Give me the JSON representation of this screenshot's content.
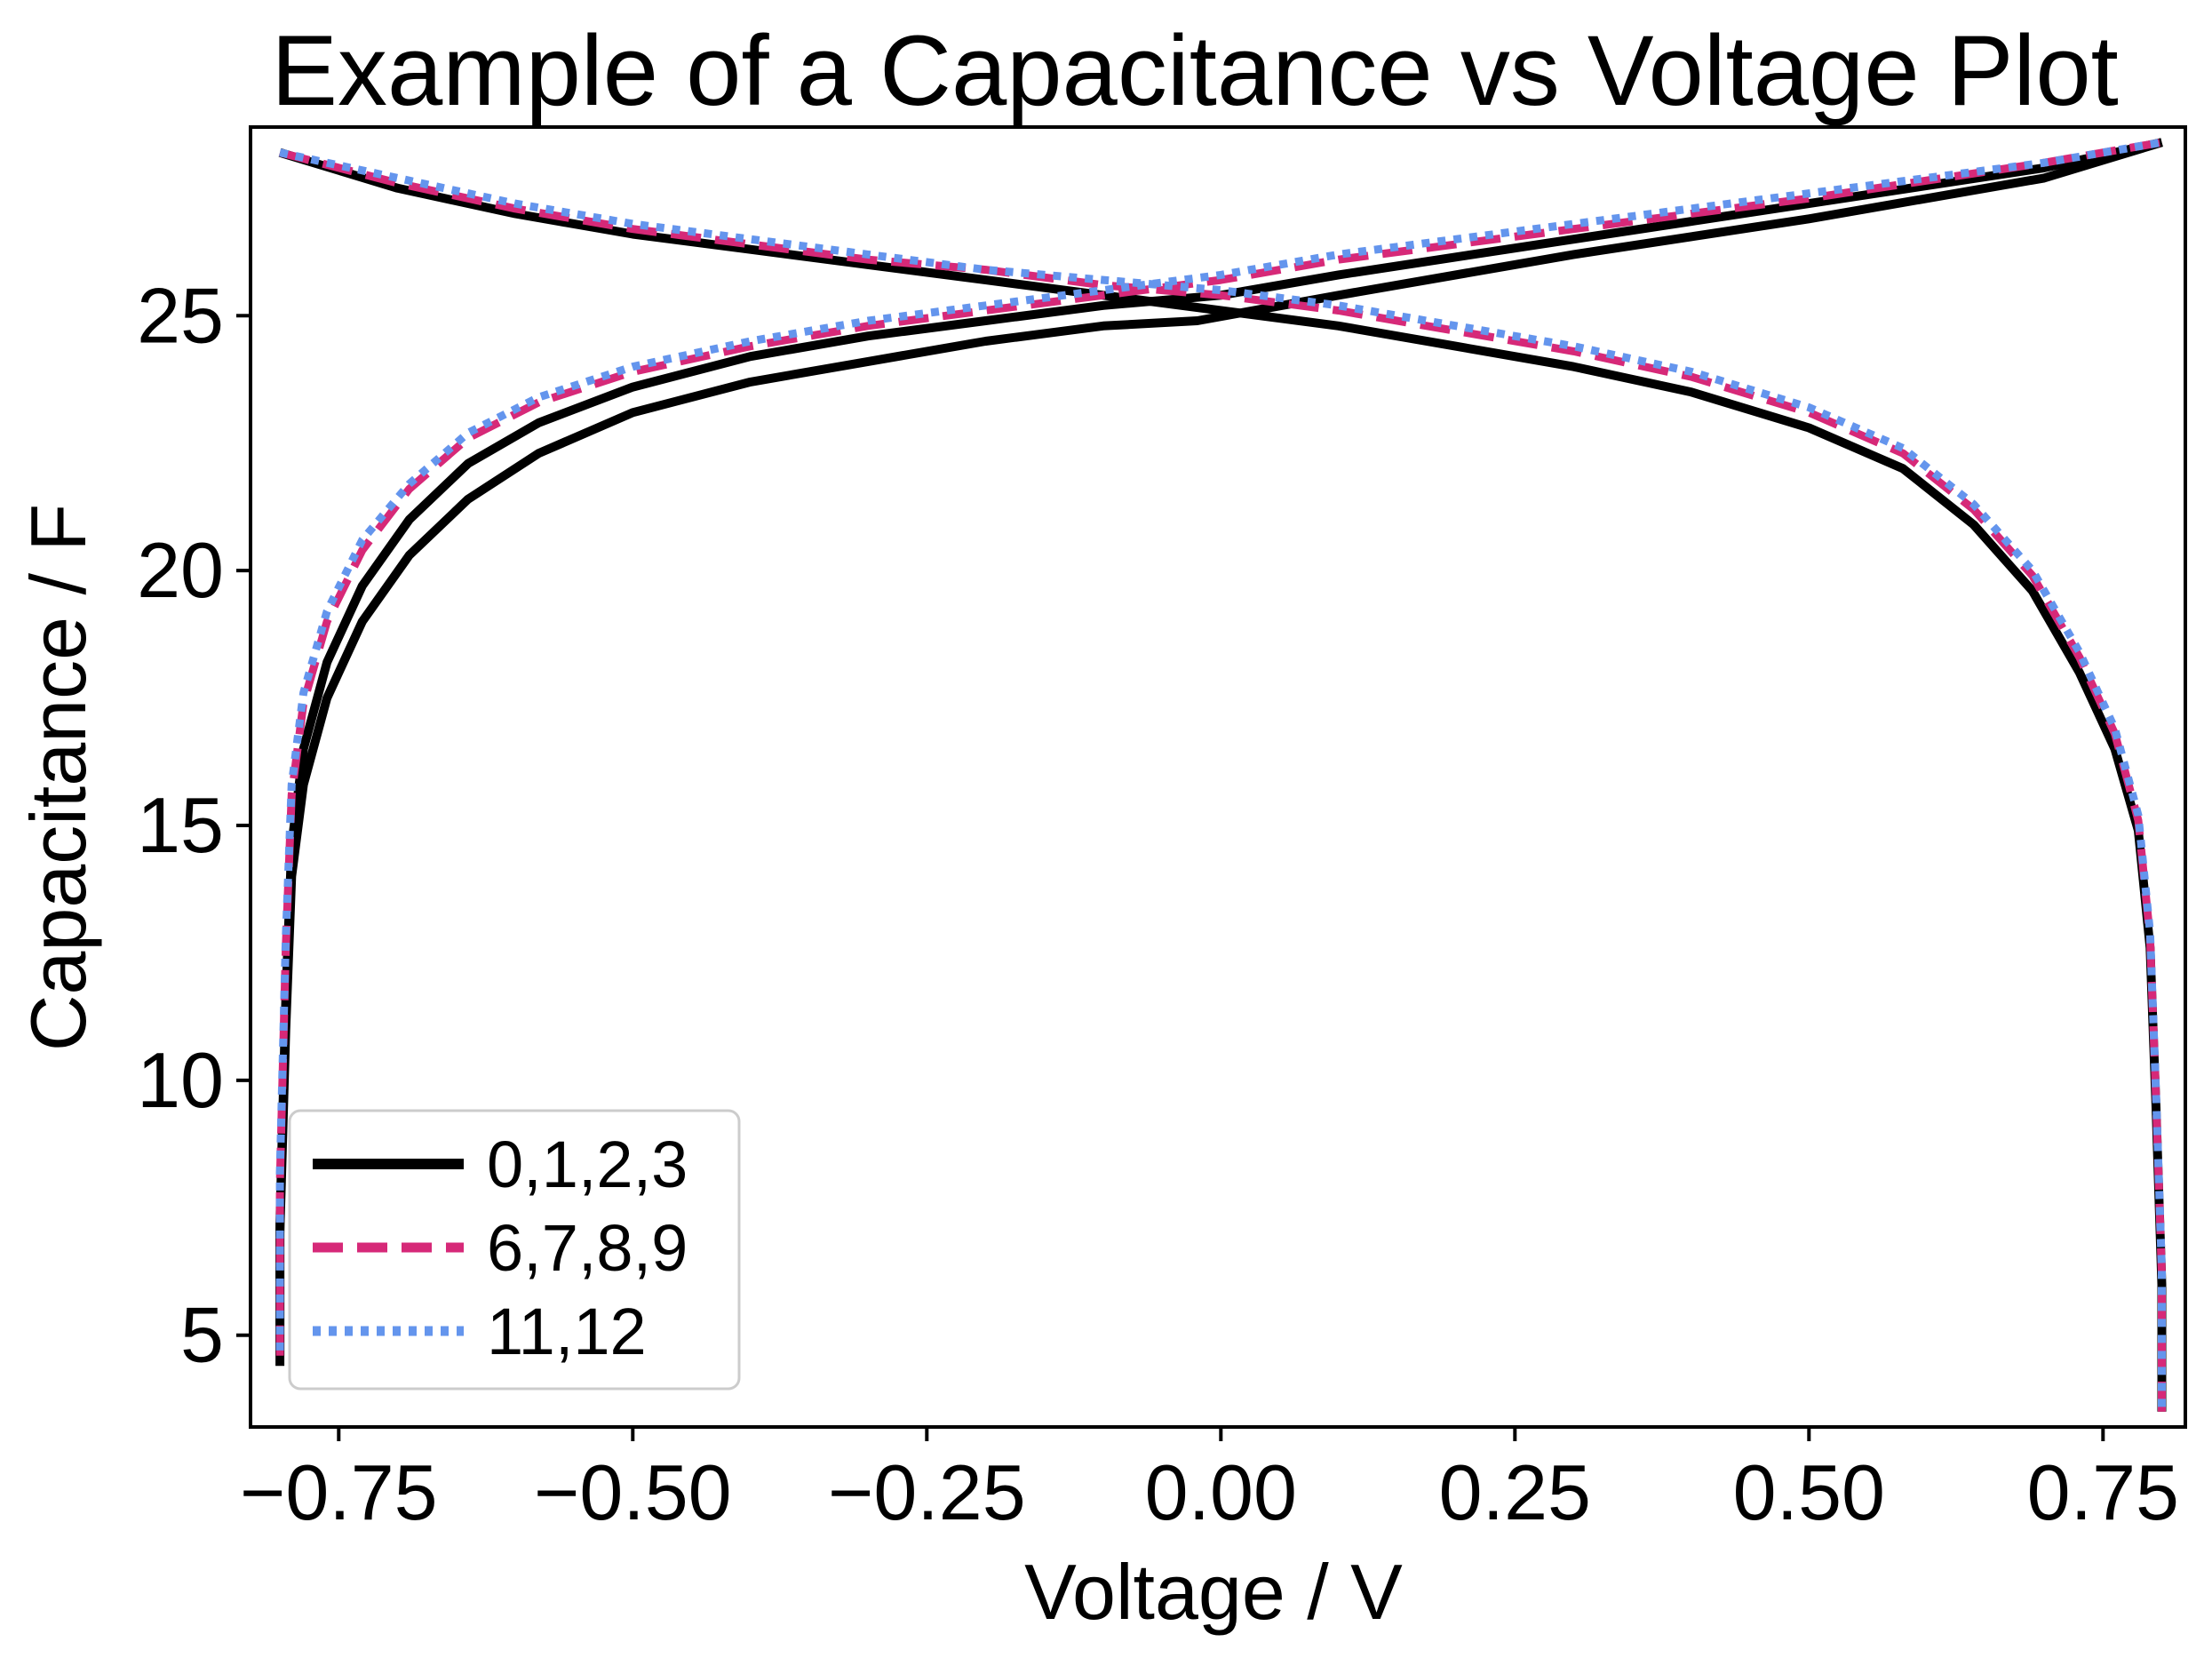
{
  "chart_data": {
    "type": "line",
    "title": "Example of a Capacitance vs Voltage Plot",
    "xlabel": "Voltage / V",
    "ylabel": "Capacitance / F",
    "xlim": [
      -0.825,
      0.82
    ],
    "ylim": [
      3.2,
      28.7
    ],
    "xticks": [
      -0.75,
      -0.5,
      -0.25,
      0.0,
      0.25,
      0.5,
      0.75
    ],
    "xtick_labels": [
      "−0.75",
      "−0.50",
      "−0.25",
      "0.00",
      "0.25",
      "0.50",
      "0.75"
    ],
    "yticks": [
      5,
      10,
      15,
      20,
      25
    ],
    "ytick_labels": [
      "5",
      "10",
      "15",
      "20",
      "25"
    ],
    "grid": false,
    "legend_position": "lower-left",
    "series": [
      {
        "name": "0,1,2,3",
        "color": "#000000",
        "style": "solid",
        "curves": [
          {
            "x": [
              -0.8,
              -0.8,
              -0.795,
              -0.79,
              -0.78,
              -0.76,
              -0.73,
              -0.69,
              -0.64,
              -0.58,
              -0.5,
              -0.4,
              -0.3,
              -0.2,
              -0.1,
              -0.02,
              0.1,
              0.3,
              0.5,
              0.7,
              0.8
            ],
            "y": [
              4.6,
              7.0,
              11.0,
              14.0,
              15.8,
              17.5,
              19.0,
              20.3,
              21.4,
              22.3,
              23.1,
              23.7,
              24.1,
              24.5,
              24.8,
              24.9,
              25.4,
              26.2,
              26.9,
              27.7,
              28.4
            ]
          },
          {
            "x": [
              -0.8,
              -0.8,
              -0.795,
              -0.79,
              -0.78,
              -0.76,
              -0.73,
              -0.69,
              -0.64,
              -0.58,
              -0.5,
              -0.4,
              -0.3,
              -0.2,
              -0.1,
              0.0,
              0.1,
              0.3,
              0.5,
              0.7,
              0.8
            ],
            "y": [
              4.4,
              7.2,
              11.6,
              14.6,
              16.5,
              18.2,
              19.7,
              21.0,
              22.1,
              22.9,
              23.6,
              24.2,
              24.6,
              24.9,
              25.2,
              25.4,
              25.8,
              26.5,
              27.2,
              27.9,
              28.4
            ]
          },
          {
            "x": [
              -0.8,
              -0.7,
              -0.6,
              -0.5,
              -0.4,
              -0.3,
              -0.2,
              -0.1,
              0.0,
              0.1,
              0.2,
              0.3,
              0.4,
              0.5,
              0.58,
              0.64,
              0.69,
              0.73,
              0.76,
              0.78,
              0.79,
              0.795,
              0.8,
              0.8
            ],
            "y": [
              28.2,
              27.5,
              27.0,
              26.6,
              26.3,
              26.0,
              25.7,
              25.4,
              25.1,
              24.8,
              24.4,
              24.0,
              23.5,
              22.8,
              22.0,
              20.9,
              19.6,
              18.0,
              16.5,
              14.9,
              12.6,
              9.5,
              6.0,
              3.5
            ]
          }
        ]
      },
      {
        "name": "6,7,8,9",
        "color": "#d62978",
        "style": "dashed",
        "curves": [
          {
            "x": [
              -0.8,
              -0.8,
              -0.795,
              -0.79,
              -0.78,
              -0.76,
              -0.73,
              -0.69,
              -0.64,
              -0.58,
              -0.5,
              -0.4,
              -0.3,
              -0.2,
              -0.1,
              0.0,
              0.1,
              0.3,
              0.5,
              0.7,
              0.8
            ],
            "y": [
              4.6,
              8.0,
              12.6,
              15.6,
              17.4,
              19.0,
              20.4,
              21.6,
              22.6,
              23.3,
              23.9,
              24.4,
              24.8,
              25.1,
              25.4,
              25.7,
              26.1,
              26.7,
              27.3,
              28.0,
              28.4
            ]
          },
          {
            "x": [
              -0.8,
              -0.7,
              -0.6,
              -0.5,
              -0.4,
              -0.3,
              -0.2,
              -0.1,
              0.0,
              0.1,
              0.2,
              0.3,
              0.4,
              0.5,
              0.58,
              0.64,
              0.69,
              0.73,
              0.76,
              0.78,
              0.79,
              0.795,
              0.8,
              0.8
            ],
            "y": [
              28.2,
              27.6,
              27.1,
              26.7,
              26.4,
              26.1,
              25.9,
              25.6,
              25.4,
              25.1,
              24.7,
              24.3,
              23.8,
              23.1,
              22.3,
              21.2,
              19.9,
              18.3,
              16.8,
              15.1,
              12.8,
              9.7,
              6.2,
              3.5
            ]
          }
        ]
      },
      {
        "name": "11,12",
        "color": "#6495ed",
        "style": "dotted",
        "curves": [
          {
            "x": [
              -0.8,
              -0.8,
              -0.795,
              -0.79,
              -0.78,
              -0.76,
              -0.73,
              -0.69,
              -0.64,
              -0.58,
              -0.5,
              -0.4,
              -0.3,
              -0.2,
              -0.1,
              0.0,
              0.1,
              0.3,
              0.5,
              0.7,
              0.8
            ],
            "y": [
              4.7,
              8.2,
              12.8,
              15.8,
              17.6,
              19.2,
              20.6,
              21.7,
              22.7,
              23.4,
              24.0,
              24.5,
              24.9,
              25.2,
              25.5,
              25.8,
              26.2,
              26.8,
              27.4,
              28.0,
              28.4
            ]
          },
          {
            "x": [
              -0.8,
              -0.7,
              -0.6,
              -0.5,
              -0.4,
              -0.3,
              -0.2,
              -0.1,
              0.0,
              0.1,
              0.2,
              0.3,
              0.4,
              0.5,
              0.58,
              0.64,
              0.69,
              0.73,
              0.76,
              0.78,
              0.79,
              0.795,
              0.8,
              0.8
            ],
            "y": [
              28.2,
              27.7,
              27.2,
              26.8,
              26.5,
              26.2,
              25.9,
              25.7,
              25.5,
              25.2,
              24.8,
              24.4,
              23.9,
              23.2,
              22.4,
              21.3,
              20.0,
              18.4,
              16.9,
              15.2,
              12.9,
              9.8,
              6.3,
              3.5
            ]
          }
        ]
      }
    ]
  }
}
